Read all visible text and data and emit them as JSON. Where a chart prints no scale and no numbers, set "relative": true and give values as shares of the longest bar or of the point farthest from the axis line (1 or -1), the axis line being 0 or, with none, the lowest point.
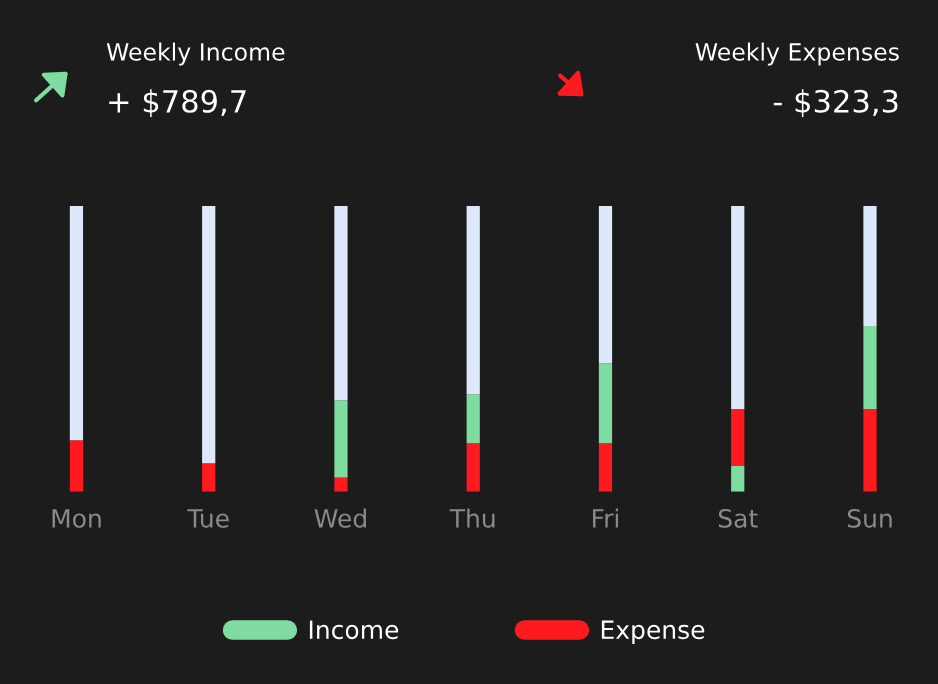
{
  "chart_data": {
    "type": "bar",
    "relative": true,
    "stacked": true,
    "legend": "bottom",
    "annotations": [
      "Weekly Income",
      "+ $789,7",
      "Weekly Expenses",
      "- $323,3"
    ],
    "categories": [
      "Mon",
      "Tue",
      "Wed",
      "Thu",
      "Fri",
      "Sat",
      "Sun"
    ],
    "series": [
      {
        "name": "Income",
        "color": "#7fdca0",
        "values": [
          0,
          0,
          0,
          0,
          0,
          0.09,
          0
        ]
      },
      {
        "name": "Expense",
        "color": "#ff1a1f",
        "values": [
          0.18,
          0.1,
          0.05,
          0.17,
          0.17,
          0.2,
          0.29
        ]
      },
      {
        "color": "#7fdca0",
        "values": [
          0,
          0,
          0.27,
          0.17,
          0.28,
          0,
          0.29
        ]
      },
      {
        "color": "#dde8fb",
        "values": [
          0.82,
          0.9,
          0.68,
          0.66,
          0.55,
          0.71,
          0.42
        ]
      }
    ]
  }
}
